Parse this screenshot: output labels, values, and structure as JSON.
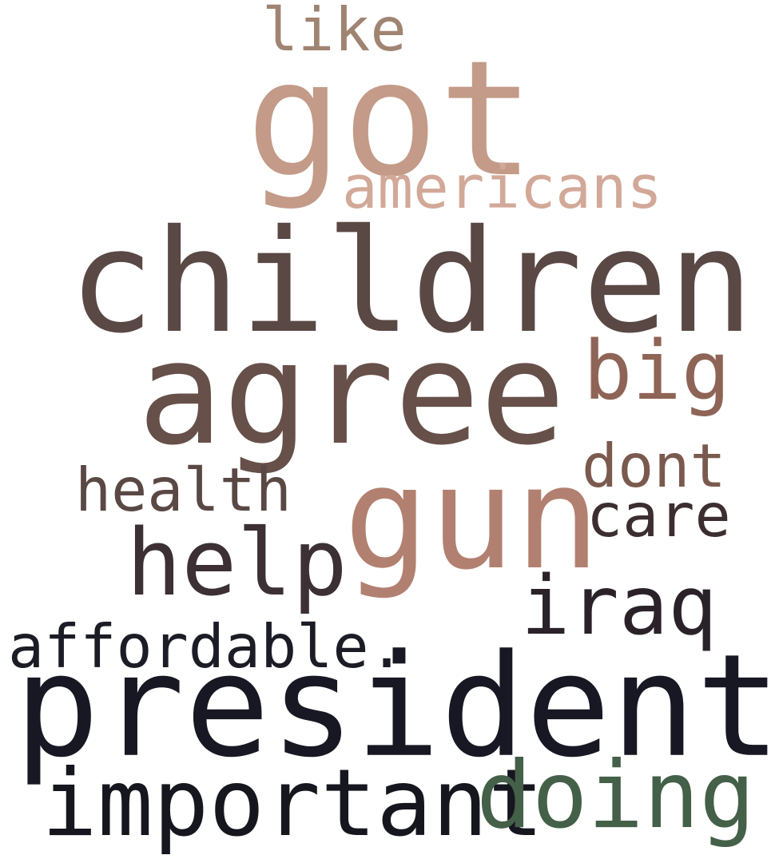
{
  "words": {
    "like": {
      "text": "like",
      "color": "#a08472"
    },
    "got": {
      "text": "got",
      "color": "#c39b88"
    },
    "americans": {
      "text": "americans",
      "color": "#d2a898"
    },
    "children": {
      "text": "children",
      "color": "#5a4844"
    },
    "agree": {
      "text": "agree",
      "color": "#665049"
    },
    "big": {
      "text": "big",
      "color": "#8e6456"
    },
    "dont": {
      "text": "dont",
      "color": "#7a5a4e"
    },
    "health": {
      "text": "health",
      "color": "#5a4844"
    },
    "gun": {
      "text": "gun",
      "color": "#b28070"
    },
    "care": {
      "text": "care",
      "color": "#3c2e30"
    },
    "help": {
      "text": "help",
      "color": "#3c3034"
    },
    "iraq": {
      "text": "iraq",
      "color": "#2a2228"
    },
    "affordable": {
      "text": "affordable.",
      "color": "#1c1c26"
    },
    "president": {
      "text": "president",
      "color": "#181824"
    },
    "important": {
      "text": "important",
      "color": "#16161f"
    },
    "doing": {
      "text": "doing",
      "color": "#446048"
    }
  }
}
